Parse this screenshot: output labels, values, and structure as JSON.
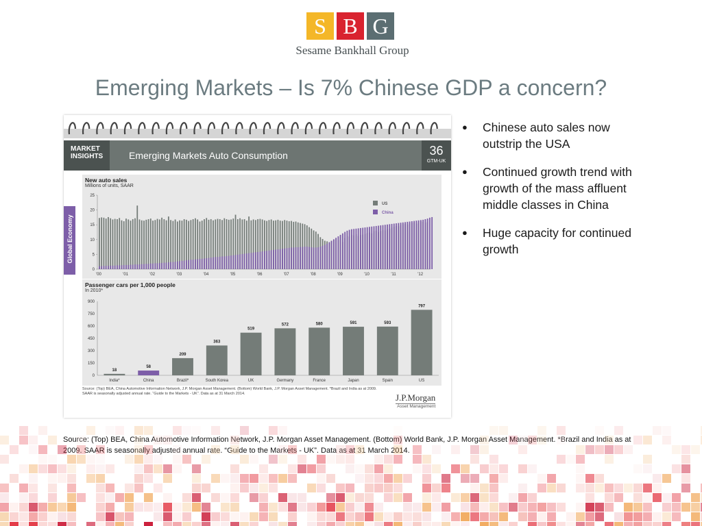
{
  "logo": {
    "letters": [
      "S",
      "B",
      "G"
    ],
    "name": "Sesame Bankhall Group",
    "colors": [
      "#f4b728",
      "#d9232f",
      "#5b6e72"
    ]
  },
  "slide": {
    "title": "Emerging Markets – Is 7% Chinese GDP a concern?"
  },
  "card": {
    "badge": "MARKET\nINSIGHTS",
    "header_title": "Emerging Markets Auto Consumption",
    "page_number": "36",
    "page_code": "GTM-UK",
    "side_tab": "Global Economy",
    "source": "Source: (Top) BEA, China Automotive Information Network, J.P. Morgan Asset Management. (Bottom) World Bank, J.P. Morgan Asset Management. *Brazil and India as at 2009. SAAR is seasonally adjusted annual rate. “Guide to the Markets - UK”. Data as at 31 March 2014.",
    "brand": "J.P.Morgan",
    "brand_sub": "Asset Management"
  },
  "chart_data": [
    {
      "type": "bar",
      "title": "New auto sales",
      "subtitle": "Millions of units, SAAR",
      "x_tick_labels": [
        "'00",
        "'01",
        "'02",
        "'03",
        "'04",
        "'05",
        "'06",
        "'07",
        "'08",
        "'09",
        "'10",
        "'11",
        "'12"
      ],
      "y_ticks": [
        0,
        5,
        10,
        15,
        20,
        25
      ],
      "ylim": [
        0,
        25
      ],
      "legend": [
        {
          "name": "US",
          "color": "#747c78"
        },
        {
          "name": "China",
          "color": "#7d5ea8"
        }
      ],
      "legend_position": "top-right",
      "x_start": 2000.0,
      "x_step_years": 0.0833,
      "series": [
        {
          "name": "US",
          "color": "#747c78",
          "values": [
            17.3,
            17.5,
            17.4,
            17.1,
            17.6,
            17.2,
            16.8,
            17.0,
            16.9,
            17.3,
            16.5,
            16.2,
            17.1,
            16.8,
            16.4,
            16.9,
            17.2,
            21.5,
            16.8,
            16.5,
            16.4,
            16.7,
            16.9,
            17.1,
            16.4,
            16.6,
            17.0,
            16.8,
            17.4,
            16.9,
            16.5,
            17.8,
            16.6,
            16.3,
            16.8,
            16.1,
            16.5,
            16.4,
            16.9,
            16.7,
            16.3,
            16.6,
            16.9,
            17.2,
            16.8,
            16.1,
            16.4,
            16.9,
            17.3,
            16.7,
            16.9,
            16.5,
            16.8,
            17.0,
            16.9,
            16.6,
            17.2,
            16.9,
            16.7,
            16.8,
            17.1,
            18.4,
            16.9,
            17.2,
            16.8,
            16.9,
            16.4,
            17.8,
            16.5,
            16.8,
            16.6,
            16.9,
            17.0,
            16.8,
            16.5,
            16.3,
            16.6,
            16.8,
            16.4,
            16.5,
            16.7,
            16.4,
            16.3,
            16.6,
            16.4,
            16.2,
            16.3,
            16.0,
            16.1,
            15.8,
            15.6,
            15.4,
            15.2,
            14.8,
            14.2,
            13.7,
            13.1,
            12.7,
            11.9,
            10.8,
            10.2,
            9.6,
            9.4,
            9.1,
            9.6,
            9.9,
            10.2,
            9.8,
            11.5,
            9.2,
            10.5,
            11.2,
            11.0,
            11.6,
            11.4,
            11.8,
            11.2,
            11.5,
            11.7,
            11.9,
            12.2,
            12.4,
            12.1,
            12.8,
            13.0,
            12.5,
            12.9,
            13.2,
            13.1,
            13.4,
            13.6,
            14.0,
            14.3,
            14.6,
            14.5,
            14.9,
            15.2,
            15.3,
            15.1,
            15.5,
            15.6,
            15.8,
            15.4,
            15.9,
            16.1,
            16.0,
            15.7,
            15.9
          ]
        },
        {
          "name": "China",
          "color": "#7d5ea8",
          "values": [
            1.0,
            1.0,
            1.1,
            1.1,
            1.1,
            1.2,
            1.2,
            1.2,
            1.3,
            1.3,
            1.3,
            1.4,
            1.4,
            1.4,
            1.5,
            1.5,
            1.6,
            1.6,
            1.6,
            1.7,
            1.7,
            1.8,
            1.8,
            1.9,
            1.9,
            2.0,
            2.0,
            2.1,
            2.1,
            2.2,
            2.2,
            2.3,
            2.4,
            2.4,
            2.5,
            2.6,
            2.7,
            2.8,
            2.9,
            3.0,
            3.1,
            3.2,
            3.2,
            3.3,
            3.4,
            3.5,
            3.5,
            3.6,
            3.7,
            3.8,
            3.9,
            4.0,
            4.1,
            4.1,
            4.2,
            4.3,
            4.3,
            4.4,
            4.5,
            4.6,
            4.7,
            4.8,
            4.9,
            5.0,
            5.1,
            5.2,
            5.3,
            5.4,
            5.5,
            5.6,
            5.7,
            5.8,
            5.9,
            6.0,
            6.1,
            6.2,
            6.3,
            6.4,
            6.5,
            6.6,
            6.7,
            6.8,
            6.9,
            7.0,
            7.1,
            7.2,
            7.3,
            7.3,
            7.4,
            7.4,
            7.5,
            7.5,
            7.6,
            7.6,
            7.5,
            7.4,
            7.3,
            7.3,
            7.4,
            7.6,
            7.9,
            8.2,
            8.6,
            9.1,
            9.6,
            10.1,
            10.6,
            11.1,
            11.6,
            12.1,
            12.6,
            13.0,
            13.3,
            13.5,
            13.6,
            13.7,
            13.8,
            13.9,
            14.0,
            14.1,
            14.2,
            14.3,
            14.4,
            14.5,
            14.6,
            14.7,
            14.8,
            14.9,
            15.0,
            15.1,
            15.2,
            15.3,
            15.4,
            15.5,
            15.6,
            15.7,
            15.8,
            15.9,
            16.0,
            16.1,
            16.2,
            16.3,
            16.4,
            16.5,
            16.6,
            16.7,
            16.9,
            17.1,
            17.4,
            17.6
          ]
        }
      ]
    },
    {
      "type": "bar",
      "title": "Passenger cars per 1,000 people",
      "subtitle": "In 2010*",
      "categories": [
        "India*",
        "China",
        "Brazil*",
        "South Korea",
        "UK",
        "Germany",
        "France",
        "Japan",
        "Spain",
        "US"
      ],
      "values": [
        18,
        58,
        209,
        363,
        519,
        572,
        580,
        591,
        593,
        797
      ],
      "colors": [
        "#747c78",
        "#7d5ea8",
        "#747c78",
        "#747c78",
        "#747c78",
        "#747c78",
        "#747c78",
        "#747c78",
        "#747c78",
        "#747c78"
      ],
      "y_ticks": [
        0,
        150,
        300,
        450,
        600,
        750,
        900
      ],
      "ylim": [
        0,
        900
      ]
    }
  ],
  "bullets": [
    "Chinese auto sales now outstrip the USA",
    "Continued growth trend with growth of the mass affluent middle classes in China",
    "Huge capacity for continued growth"
  ],
  "source": "Source: (Top) BEA, China Automotive Information Network, J.P. Morgan Asset Management. (Bottom) World Bank, J.P. Morgan Asset Management. *Brazil and India as at 2009. SAAR is seasonally adjusted annual rate. “Guide to the Markets - UK”. Data as at 31 March 2014."
}
